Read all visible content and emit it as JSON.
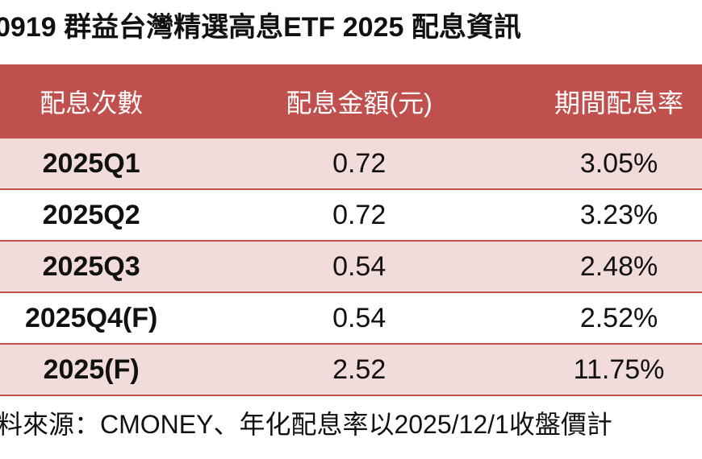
{
  "header": {
    "title": "0919 群益台灣精選高息ETF 2025 配息資訊"
  },
  "table": {
    "columns": [
      "配息次數",
      "配息金額(元)",
      "期間配息率"
    ],
    "rows": [
      [
        "2025Q1",
        "0.72",
        "3.05%"
      ],
      [
        "2025Q2",
        "0.72",
        "3.23%"
      ],
      [
        "2025Q3",
        "0.54",
        "2.48%"
      ],
      [
        "2025Q4(F)",
        "0.54",
        "2.52%"
      ],
      [
        "2025(F)",
        "2.52",
        "11.75%"
      ]
    ]
  },
  "footer": {
    "note": "料來源：CMONEY、年化配息率以2025/12/1收盤價計"
  }
}
